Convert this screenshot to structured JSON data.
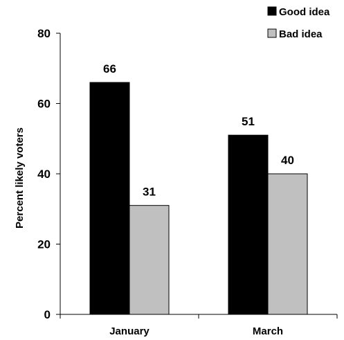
{
  "chart_data": {
    "type": "bar",
    "categories": [
      "January",
      "March"
    ],
    "series": [
      {
        "name": "Good idea",
        "values": [
          66,
          51
        ],
        "color": "#000000"
      },
      {
        "name": "Bad idea",
        "values": [
          31,
          40
        ],
        "color": "#c0c0c0"
      }
    ],
    "ylabel": "Percent likely voters",
    "xlabel": "",
    "ylim": [
      0,
      80
    ],
    "yticks": [
      0,
      20,
      40,
      60,
      80
    ],
    "legend_position": "top-right",
    "grid": false,
    "data_labels": true
  }
}
